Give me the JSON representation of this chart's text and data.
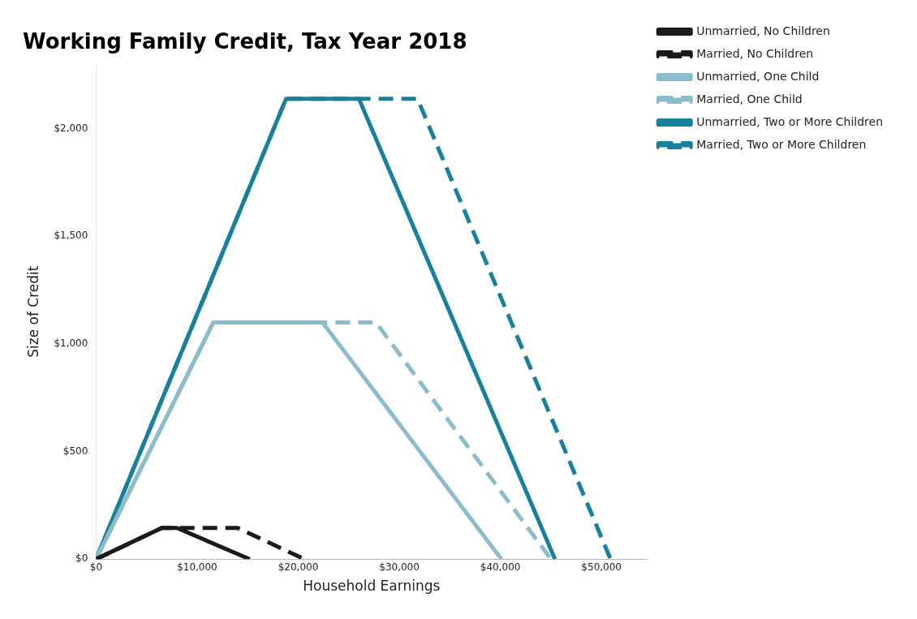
{
  "chart_data": {
    "type": "line",
    "title": "Working Family Credit, Tax Year 2018",
    "xlabel": "Household Earnings",
    "ylabel": "Size of Credit",
    "xlim": [
      0,
      54500
    ],
    "xticks": [
      {
        "value": 0,
        "label": "$0"
      },
      {
        "value": 10000,
        "label": "$10,000"
      },
      {
        "value": 20000,
        "label": "$20,000"
      },
      {
        "value": 30000,
        "label": "$30,000"
      },
      {
        "value": 40000,
        "label": "$40,000"
      },
      {
        "value": 50000,
        "label": "$50,000"
      }
    ],
    "ylim": [
      0,
      2300
    ],
    "yticks": [
      {
        "value": 0,
        "label": "$0"
      },
      {
        "value": 500,
        "label": "$500"
      },
      {
        "value": 1000,
        "label": "$1,000"
      },
      {
        "value": 1500,
        "label": "$1,500"
      },
      {
        "value": 2000,
        "label": "$2,000"
      }
    ],
    "grid": false,
    "legend": "top right",
    "marker": "none",
    "series": [
      {
        "name": "Unmarried, No Children",
        "color": "#1a1a1a",
        "line_style": "solid",
        "x": [
          0,
          6500,
          8000,
          15200
        ],
        "values": [
          0,
          145,
          145,
          0
        ]
      },
      {
        "name": "Married, No Children",
        "color": "#1a1a1a",
        "line_style": "dashed",
        "x": [
          0,
          6500,
          14000,
          20600
        ],
        "values": [
          0,
          145,
          145,
          0
        ]
      },
      {
        "name": "Unmarried, One Child",
        "color": "#8bbccc",
        "line_style": "solid",
        "x": [
          0,
          11600,
          22400,
          40100
        ],
        "values": [
          0,
          1100,
          1100,
          0
        ]
      },
      {
        "name": "Married, One Child",
        "color": "#8bbccc",
        "line_style": "dashed",
        "x": [
          0,
          11600,
          27700,
          45000
        ],
        "values": [
          0,
          1100,
          1100,
          0
        ]
      },
      {
        "name": "Unmarried, Two or More Children",
        "color": "#17809a",
        "line_style": "solid",
        "x": [
          0,
          18800,
          26000,
          45400
        ],
        "values": [
          0,
          2140,
          2140,
          0
        ]
      },
      {
        "name": "Married, Two or More Children",
        "color": "#17809a",
        "line_style": "dashed",
        "x": [
          0,
          18800,
          31800,
          50900
        ],
        "values": [
          0,
          2140,
          2140,
          0
        ]
      }
    ]
  }
}
